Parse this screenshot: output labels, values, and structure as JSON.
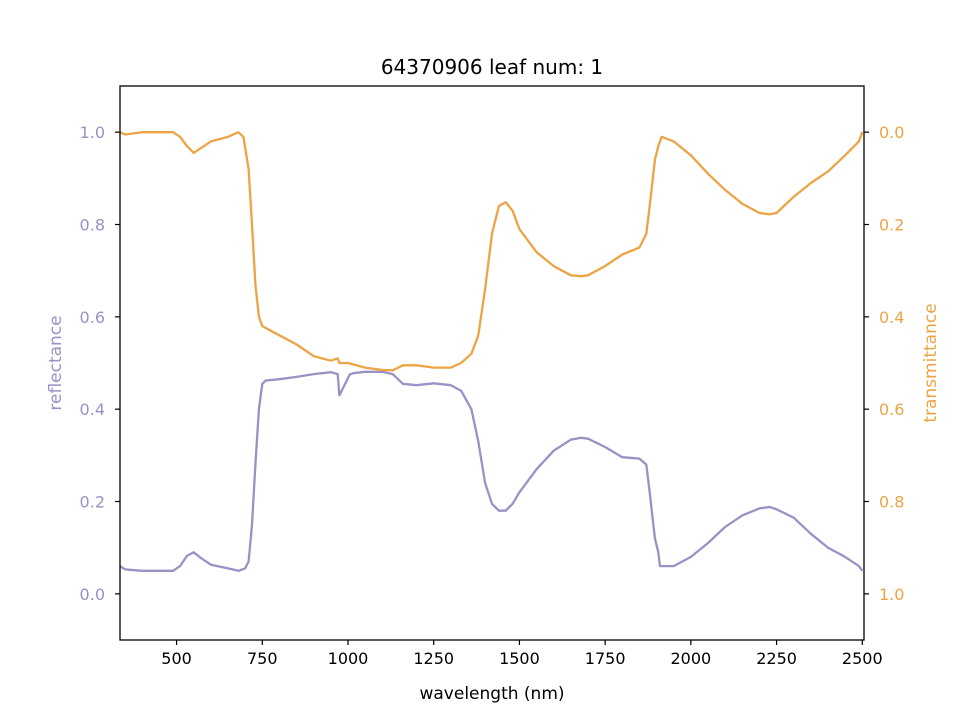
{
  "colors": {
    "reflectance": "#9892c5",
    "transmittance": "#eca444",
    "axis": "#000000",
    "background": "#ffffff"
  },
  "chart_data": {
    "type": "line",
    "title": "64370906 leaf num: 1",
    "xlabel": "wavelength (nm)",
    "ylabel_left": "reflectance",
    "ylabel_right": "transmittance",
    "xlim": [
      335,
      2505
    ],
    "ylim_left": [
      -0.1,
      1.1
    ],
    "ylim_right": [
      1.1,
      -0.1
    ],
    "right_axis_inverted": true,
    "grid": false,
    "x_ticks": [
      500,
      750,
      1000,
      1250,
      1500,
      1750,
      2000,
      2250,
      2500
    ],
    "x_tick_labels": [
      "500",
      "750",
      "1000",
      "1250",
      "1500",
      "1750",
      "2000",
      "2250",
      "2500"
    ],
    "y_left_ticks": [
      0.0,
      0.2,
      0.4,
      0.6,
      0.8,
      1.0
    ],
    "y_left_tick_labels": [
      "0.0",
      "0.2",
      "0.4",
      "0.6",
      "0.8",
      "1.0"
    ],
    "y_right_ticks": [
      0.0,
      0.2,
      0.4,
      0.6,
      0.8,
      1.0
    ],
    "y_right_tick_labels": [
      "0.0",
      "0.2",
      "0.4",
      "0.6",
      "0.8",
      "1.0"
    ],
    "series": [
      {
        "axis": "left",
        "points": [
          [
            335,
            0.06
          ],
          [
            350,
            0.053
          ],
          [
            400,
            0.05
          ],
          [
            450,
            0.05
          ],
          [
            490,
            0.05
          ],
          [
            510,
            0.06
          ],
          [
            530,
            0.082
          ],
          [
            550,
            0.09
          ],
          [
            570,
            0.078
          ],
          [
            600,
            0.063
          ],
          [
            650,
            0.055
          ],
          [
            680,
            0.05
          ],
          [
            700,
            0.055
          ],
          [
            710,
            0.07
          ],
          [
            720,
            0.15
          ],
          [
            730,
            0.28
          ],
          [
            740,
            0.4
          ],
          [
            750,
            0.455
          ],
          [
            760,
            0.462
          ],
          [
            800,
            0.465
          ],
          [
            850,
            0.47
          ],
          [
            900,
            0.476
          ],
          [
            950,
            0.48
          ],
          [
            970,
            0.476
          ],
          [
            975,
            0.43
          ],
          [
            985,
            0.445
          ],
          [
            995,
            0.46
          ],
          [
            1005,
            0.475
          ],
          [
            1015,
            0.478
          ],
          [
            1050,
            0.481
          ],
          [
            1100,
            0.481
          ],
          [
            1130,
            0.476
          ],
          [
            1160,
            0.455
          ],
          [
            1200,
            0.452
          ],
          [
            1250,
            0.456
          ],
          [
            1300,
            0.452
          ],
          [
            1330,
            0.44
          ],
          [
            1360,
            0.4
          ],
          [
            1380,
            0.33
          ],
          [
            1400,
            0.24
          ],
          [
            1420,
            0.195
          ],
          [
            1440,
            0.18
          ],
          [
            1460,
            0.18
          ],
          [
            1480,
            0.195
          ],
          [
            1500,
            0.22
          ],
          [
            1550,
            0.27
          ],
          [
            1600,
            0.31
          ],
          [
            1650,
            0.334
          ],
          [
            1680,
            0.338
          ],
          [
            1700,
            0.336
          ],
          [
            1750,
            0.318
          ],
          [
            1800,
            0.296
          ],
          [
            1850,
            0.293
          ],
          [
            1870,
            0.28
          ],
          [
            1880,
            0.22
          ],
          [
            1895,
            0.12
          ],
          [
            1905,
            0.09
          ],
          [
            1910,
            0.06
          ],
          [
            1950,
            0.06
          ],
          [
            2000,
            0.08
          ],
          [
            2050,
            0.11
          ],
          [
            2100,
            0.145
          ],
          [
            2150,
            0.17
          ],
          [
            2200,
            0.185
          ],
          [
            2230,
            0.188
          ],
          [
            2250,
            0.183
          ],
          [
            2300,
            0.165
          ],
          [
            2350,
            0.13
          ],
          [
            2400,
            0.1
          ],
          [
            2450,
            0.08
          ],
          [
            2490,
            0.06
          ],
          [
            2500,
            0.05
          ]
        ]
      },
      {
        "axis": "right",
        "points": [
          [
            335,
            0.0
          ],
          [
            350,
            0.005
          ],
          [
            400,
            0.0
          ],
          [
            450,
            0.0
          ],
          [
            490,
            0.0
          ],
          [
            510,
            0.01
          ],
          [
            530,
            0.03
          ],
          [
            550,
            0.045
          ],
          [
            570,
            0.035
          ],
          [
            600,
            0.02
          ],
          [
            650,
            0.01
          ],
          [
            680,
            0.0
          ],
          [
            695,
            0.01
          ],
          [
            710,
            0.08
          ],
          [
            720,
            0.2
          ],
          [
            730,
            0.33
          ],
          [
            740,
            0.4
          ],
          [
            750,
            0.42
          ],
          [
            800,
            0.44
          ],
          [
            850,
            0.46
          ],
          [
            900,
            0.485
          ],
          [
            950,
            0.495
          ],
          [
            970,
            0.49
          ],
          [
            975,
            0.5
          ],
          [
            1000,
            0.5
          ],
          [
            1050,
            0.51
          ],
          [
            1100,
            0.515
          ],
          [
            1130,
            0.516
          ],
          [
            1160,
            0.505
          ],
          [
            1200,
            0.505
          ],
          [
            1250,
            0.51
          ],
          [
            1300,
            0.51
          ],
          [
            1330,
            0.5
          ],
          [
            1360,
            0.48
          ],
          [
            1380,
            0.44
          ],
          [
            1400,
            0.34
          ],
          [
            1420,
            0.22
          ],
          [
            1440,
            0.16
          ],
          [
            1460,
            0.152
          ],
          [
            1480,
            0.17
          ],
          [
            1500,
            0.21
          ],
          [
            1550,
            0.26
          ],
          [
            1600,
            0.29
          ],
          [
            1650,
            0.31
          ],
          [
            1680,
            0.312
          ],
          [
            1700,
            0.31
          ],
          [
            1750,
            0.29
          ],
          [
            1800,
            0.265
          ],
          [
            1850,
            0.25
          ],
          [
            1870,
            0.22
          ],
          [
            1880,
            0.16
          ],
          [
            1895,
            0.06
          ],
          [
            1905,
            0.03
          ],
          [
            1915,
            0.01
          ],
          [
            1950,
            0.02
          ],
          [
            2000,
            0.05
          ],
          [
            2050,
            0.09
          ],
          [
            2100,
            0.125
          ],
          [
            2150,
            0.155
          ],
          [
            2200,
            0.175
          ],
          [
            2230,
            0.178
          ],
          [
            2250,
            0.175
          ],
          [
            2300,
            0.14
          ],
          [
            2350,
            0.11
          ],
          [
            2400,
            0.085
          ],
          [
            2450,
            0.05
          ],
          [
            2490,
            0.02
          ],
          [
            2500,
            0.0
          ]
        ]
      }
    ]
  }
}
